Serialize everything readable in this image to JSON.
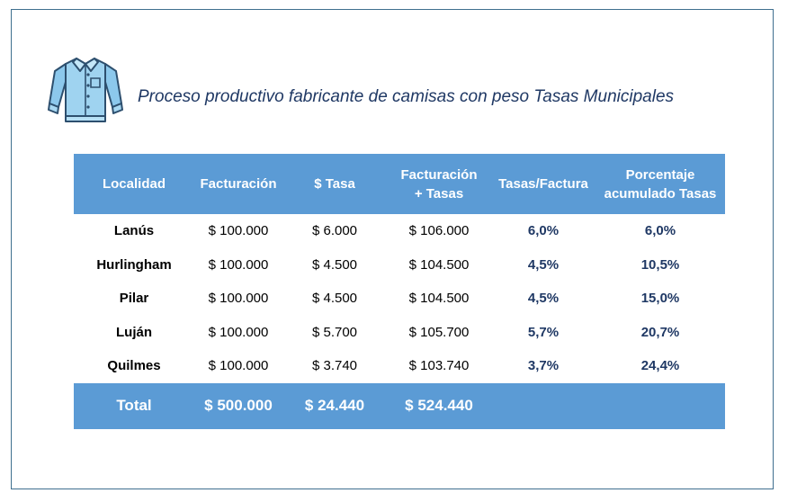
{
  "title": "Proceso productivo fabricante de camisas con peso Tasas Municipales",
  "icon": "shirt-icon",
  "colors": {
    "header_bg": "#5b9bd5",
    "title_text": "#1f3864",
    "frame_border": "#3f6f8f"
  },
  "table": {
    "headers": {
      "localidad": "Localidad",
      "facturacion": "Facturación",
      "tasa": "$ Tasa",
      "fact_tasas_1": "Facturación",
      "fact_tasas_2": "+ Tasas",
      "tasas_factura": "Tasas/Factura",
      "porc_1": "Porcentaje",
      "porc_2": "acumulado Tasas"
    },
    "rows": [
      {
        "localidad": "Lanús",
        "facturacion": "$ 100.000",
        "tasa": "$ 6.000",
        "fact_tasas": "$ 106.000",
        "tasas_factura": "6,0%",
        "acumulado": "6,0%"
      },
      {
        "localidad": "Hurlingham",
        "facturacion": "$ 100.000",
        "tasa": "$ 4.500",
        "fact_tasas": "$ 104.500",
        "tasas_factura": "4,5%",
        "acumulado": "10,5%"
      },
      {
        "localidad": "Pilar",
        "facturacion": "$ 100.000",
        "tasa": "$ 4.500",
        "fact_tasas": "$ 104.500",
        "tasas_factura": "4,5%",
        "acumulado": "15,0%"
      },
      {
        "localidad": "Luján",
        "facturacion": "$ 100.000",
        "tasa": "$ 5.700",
        "fact_tasas": "$ 105.700",
        "tasas_factura": "5,7%",
        "acumulado": "20,7%"
      },
      {
        "localidad": "Quilmes",
        "facturacion": "$ 100.000",
        "tasa": "$ 3.740",
        "fact_tasas": "$ 103.740",
        "tasas_factura": "3,7%",
        "acumulado": "24,4%"
      }
    ],
    "total": {
      "label": "Total",
      "facturacion": "$ 500.000",
      "tasa": "$ 24.440",
      "fact_tasas": "$ 524.440"
    }
  }
}
